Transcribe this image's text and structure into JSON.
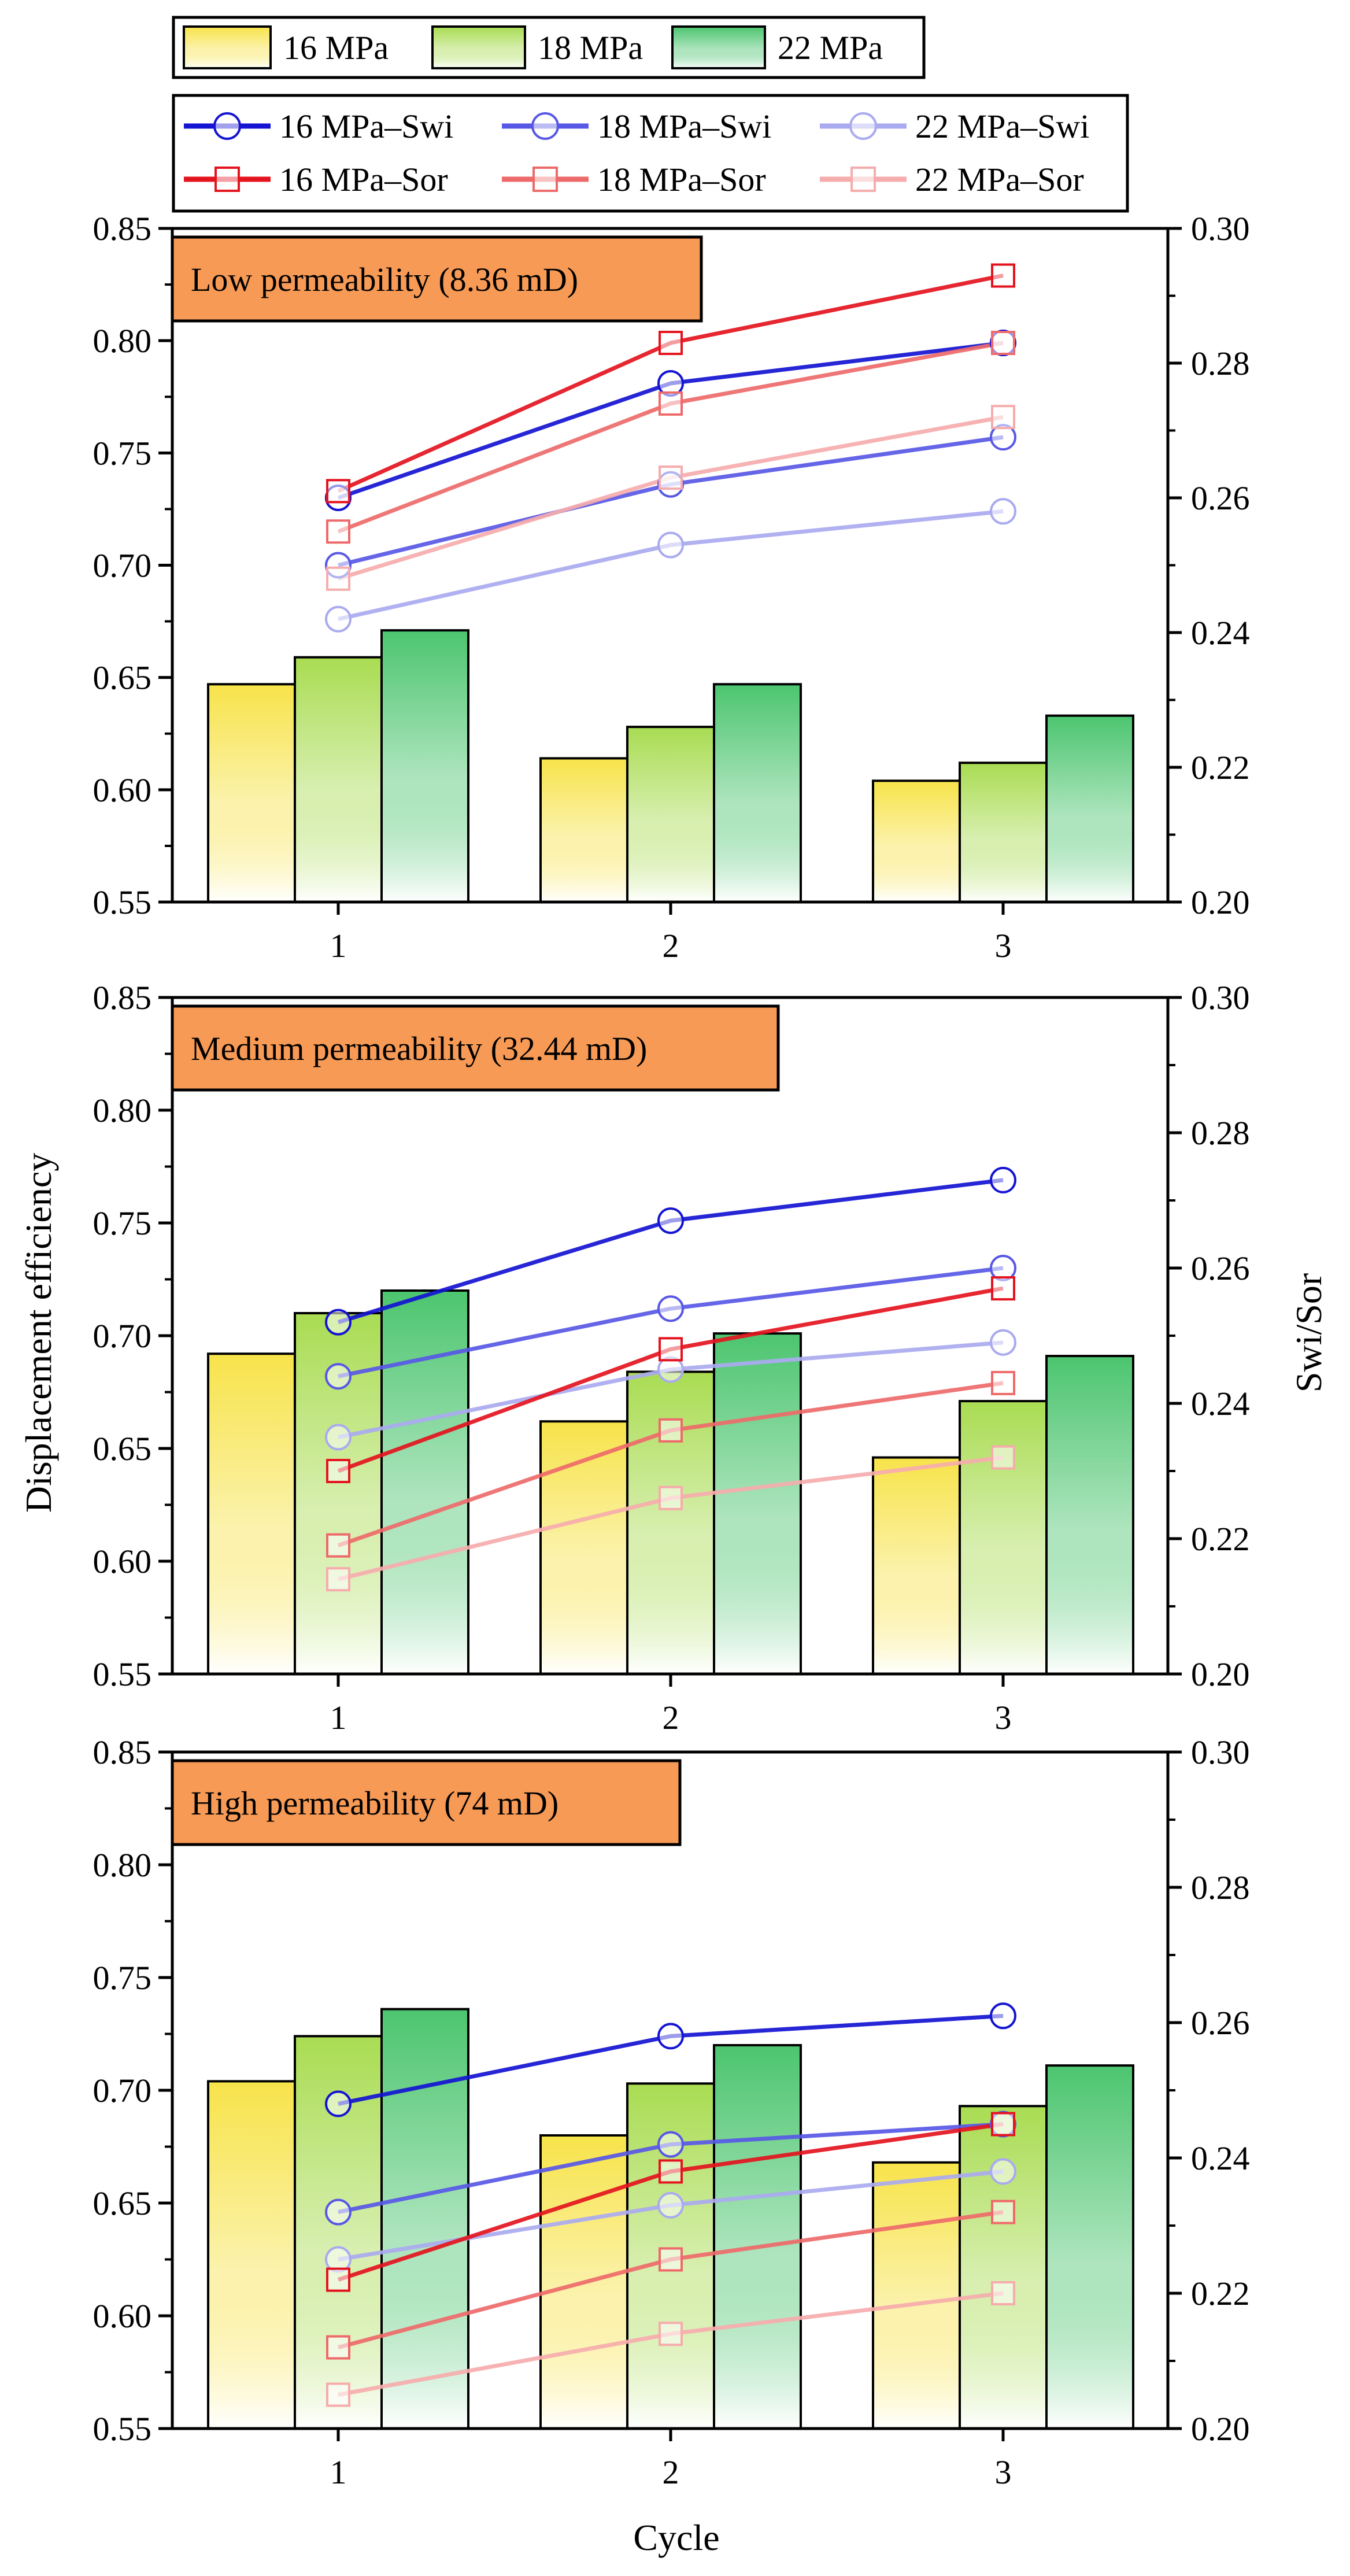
{
  "chart_data": {
    "type": "bar",
    "xlabel": "Cycle",
    "ylabel_left": "Displacement efficiency",
    "ylabel_right": "Swi/Sor",
    "categories": [
      "1",
      "2",
      "3"
    ],
    "ylim_left": [
      0.55,
      0.85
    ],
    "yticks_left": [
      "0.55",
      "0.60",
      "0.65",
      "0.70",
      "0.75",
      "0.80",
      "0.85"
    ],
    "ylim_right": [
      0.2,
      0.3
    ],
    "yticks_right": [
      "0.20",
      "0.22",
      "0.24",
      "0.26",
      "0.28",
      "0.30"
    ],
    "bar_legend": [
      {
        "name": "16 MPa",
        "color": "#f7e34a"
      },
      {
        "name": "18 MPa",
        "color": "#a9dc52"
      },
      {
        "name": "22 MPa",
        "color": "#4cc56f"
      }
    ],
    "line_legend": [
      {
        "name": "16 MPa–Swi",
        "color": "#1414d2",
        "marker": "circle"
      },
      {
        "name": "18 MPa–Swi",
        "color": "#5858e6",
        "marker": "circle"
      },
      {
        "name": "22 MPa–Swi",
        "color": "#aaaaf0",
        "marker": "circle"
      },
      {
        "name": "16 MPa–Sor",
        "color": "#e4141e",
        "marker": "square"
      },
      {
        "name": "18 MPa–Sor",
        "color": "#ee6a6a",
        "marker": "square"
      },
      {
        "name": "22 MPa–Sor",
        "color": "#f6acac",
        "marker": "square"
      }
    ],
    "panels": [
      {
        "title": "Low permeability (8.36 mD)",
        "bars": [
          {
            "name": "16 MPa",
            "values": [
              0.647,
              0.614,
              0.604
            ]
          },
          {
            "name": "18 MPa",
            "values": [
              0.659,
              0.628,
              0.612
            ]
          },
          {
            "name": "22 MPa",
            "values": [
              0.671,
              0.647,
              0.633
            ]
          }
        ],
        "lines": [
          {
            "name": "16 MPa–Swi",
            "values": [
              0.26,
              0.277,
              0.283
            ]
          },
          {
            "name": "18 MPa–Swi",
            "values": [
              0.25,
              0.262,
              0.269
            ]
          },
          {
            "name": "22 MPa–Swi",
            "values": [
              0.242,
              0.253,
              0.258
            ]
          },
          {
            "name": "16 MPa–Sor",
            "values": [
              0.261,
              0.283,
              0.293
            ]
          },
          {
            "name": "18 MPa–Sor",
            "values": [
              0.255,
              0.274,
              0.283
            ]
          },
          {
            "name": "22 MPa–Sor",
            "values": [
              0.248,
              0.263,
              0.272
            ]
          }
        ]
      },
      {
        "title": "Medium permeability (32.44 mD)",
        "bars": [
          {
            "name": "16 MPa",
            "values": [
              0.692,
              0.662,
              0.646
            ]
          },
          {
            "name": "18 MPa",
            "values": [
              0.71,
              0.684,
              0.671
            ]
          },
          {
            "name": "22 MPa",
            "values": [
              0.72,
              0.701,
              0.691
            ]
          }
        ],
        "lines": [
          {
            "name": "16 MPa–Swi",
            "values": [
              0.252,
              0.267,
              0.273
            ]
          },
          {
            "name": "18 MPa–Swi",
            "values": [
              0.244,
              0.254,
              0.26
            ]
          },
          {
            "name": "22 MPa–Swi",
            "values": [
              0.235,
              0.245,
              0.249
            ]
          },
          {
            "name": "16 MPa–Sor",
            "values": [
              0.23,
              0.248,
              0.257
            ]
          },
          {
            "name": "18 MPa–Sor",
            "values": [
              0.219,
              0.236,
              0.243
            ]
          },
          {
            "name": "22 MPa–Sor",
            "values": [
              0.214,
              0.226,
              0.232
            ]
          }
        ]
      },
      {
        "title": "High permeability (74 mD)",
        "bars": [
          {
            "name": "16 MPa",
            "values": [
              0.704,
              0.68,
              0.668
            ]
          },
          {
            "name": "18 MPa",
            "values": [
              0.724,
              0.703,
              0.693
            ]
          },
          {
            "name": "22 MPa",
            "values": [
              0.736,
              0.72,
              0.711
            ]
          }
        ],
        "lines": [
          {
            "name": "16 MPa–Swi",
            "values": [
              0.248,
              0.258,
              0.261
            ]
          },
          {
            "name": "18 MPa–Swi",
            "values": [
              0.232,
              0.242,
              0.245
            ]
          },
          {
            "name": "22 MPa–Swi",
            "values": [
              0.225,
              0.233,
              0.238
            ]
          },
          {
            "name": "16 MPa–Sor",
            "values": [
              0.222,
              0.238,
              0.245
            ]
          },
          {
            "name": "18 MPa–Sor",
            "values": [
              0.212,
              0.225,
              0.232
            ]
          },
          {
            "name": "22 MPa–Sor",
            "values": [
              0.205,
              0.214,
              0.22
            ]
          }
        ]
      }
    ]
  }
}
